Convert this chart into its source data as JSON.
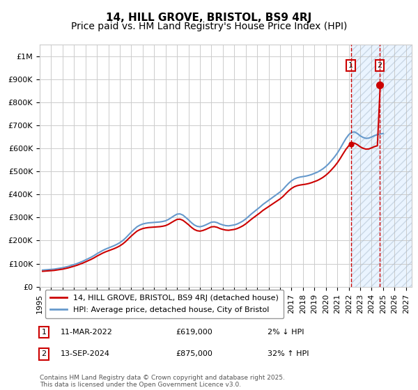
{
  "title": "14, HILL GROVE, BRISTOL, BS9 4RJ",
  "subtitle": "Price paid vs. HM Land Registry's House Price Index (HPI)",
  "ylabel_ticks": [
    "£0",
    "£100K",
    "£200K",
    "£300K",
    "£400K",
    "£500K",
    "£600K",
    "£700K",
    "£800K",
    "£900K",
    "£1M"
  ],
  "ytick_vals": [
    0,
    100000,
    200000,
    300000,
    400000,
    500000,
    600000,
    700000,
    800000,
    900000,
    1000000
  ],
  "ylim": [
    0,
    1050000
  ],
  "xlim_start": 1995.0,
  "xlim_end": 2027.5,
  "xticks": [
    1995,
    1996,
    1997,
    1998,
    1999,
    2000,
    2001,
    2002,
    2003,
    2004,
    2005,
    2006,
    2007,
    2008,
    2009,
    2010,
    2011,
    2012,
    2013,
    2014,
    2015,
    2016,
    2017,
    2018,
    2019,
    2020,
    2021,
    2022,
    2023,
    2024,
    2025,
    2026,
    2027
  ],
  "hpi_x": [
    1995.25,
    1995.5,
    1995.75,
    1996.0,
    1996.25,
    1996.5,
    1996.75,
    1997.0,
    1997.25,
    1997.5,
    1997.75,
    1998.0,
    1998.25,
    1998.5,
    1998.75,
    1999.0,
    1999.25,
    1999.5,
    1999.75,
    2000.0,
    2000.25,
    2000.5,
    2000.75,
    2001.0,
    2001.25,
    2001.5,
    2001.75,
    2002.0,
    2002.25,
    2002.5,
    2002.75,
    2003.0,
    2003.25,
    2003.5,
    2003.75,
    2004.0,
    2004.25,
    2004.5,
    2004.75,
    2005.0,
    2005.25,
    2005.5,
    2005.75,
    2006.0,
    2006.25,
    2006.5,
    2006.75,
    2007.0,
    2007.25,
    2007.5,
    2007.75,
    2008.0,
    2008.25,
    2008.5,
    2008.75,
    2009.0,
    2009.25,
    2009.5,
    2009.75,
    2010.0,
    2010.25,
    2010.5,
    2010.75,
    2011.0,
    2011.25,
    2011.5,
    2011.75,
    2012.0,
    2012.25,
    2012.5,
    2012.75,
    2013.0,
    2013.25,
    2013.5,
    2013.75,
    2014.0,
    2014.25,
    2014.5,
    2014.75,
    2015.0,
    2015.25,
    2015.5,
    2015.75,
    2016.0,
    2016.25,
    2016.5,
    2016.75,
    2017.0,
    2017.25,
    2017.5,
    2017.75,
    2018.0,
    2018.25,
    2018.5,
    2018.75,
    2019.0,
    2019.25,
    2019.5,
    2019.75,
    2020.0,
    2020.25,
    2020.5,
    2020.75,
    2021.0,
    2021.25,
    2021.5,
    2021.75,
    2022.0,
    2022.25,
    2022.5,
    2022.75,
    2023.0,
    2023.25,
    2023.5,
    2023.75,
    2024.0,
    2024.25,
    2024.5,
    2024.75,
    2025.0
  ],
  "hpi_y": [
    72000,
    73000,
    74000,
    75000,
    76000,
    78000,
    80000,
    82000,
    85000,
    88000,
    92000,
    96000,
    100000,
    105000,
    110000,
    116000,
    122000,
    128000,
    135000,
    143000,
    150000,
    157000,
    163000,
    168000,
    173000,
    178000,
    184000,
    191000,
    200000,
    211000,
    224000,
    237000,
    249000,
    260000,
    267000,
    272000,
    275000,
    277000,
    278000,
    279000,
    280000,
    281000,
    283000,
    286000,
    292000,
    300000,
    308000,
    315000,
    316000,
    311000,
    301000,
    290000,
    278000,
    268000,
    262000,
    260000,
    263000,
    268000,
    274000,
    280000,
    281000,
    278000,
    272000,
    268000,
    265000,
    264000,
    266000,
    268000,
    272000,
    278000,
    285000,
    294000,
    305000,
    316000,
    326000,
    336000,
    346000,
    357000,
    366000,
    375000,
    384000,
    393000,
    402000,
    411000,
    422000,
    436000,
    449000,
    460000,
    468000,
    473000,
    476000,
    478000,
    480000,
    483000,
    487000,
    492000,
    497000,
    504000,
    512000,
    522000,
    534000,
    548000,
    563000,
    580000,
    600000,
    622000,
    643000,
    660000,
    670000,
    672000,
    665000,
    655000,
    648000,
    644000,
    645000,
    650000,
    656000,
    660000,
    663000,
    665000
  ],
  "sale1_x": 2022.19,
  "sale1_y": 619000,
  "sale2_x": 2024.71,
  "sale2_y": 875000,
  "vline1_x": 2022.19,
  "vline2_x": 2024.71,
  "shade_start": 2022.19,
  "shade_end": 2027.5,
  "legend_line1": "14, HILL GROVE, BRISTOL, BS9 4RJ (detached house)",
  "legend_line2": "HPI: Average price, detached house, City of Bristol",
  "table_rows": [
    {
      "num": "1",
      "date": "11-MAR-2022",
      "price": "£619,000",
      "hpi": "2% ↓ HPI"
    },
    {
      "num": "2",
      "date": "13-SEP-2024",
      "price": "£875,000",
      "hpi": "32% ↑ HPI"
    }
  ],
  "footer": "Contains HM Land Registry data © Crown copyright and database right 2025.\nThis data is licensed under the Open Government Licence v3.0.",
  "hpi_color": "#6699cc",
  "sale_color": "#cc0000",
  "grid_color": "#cccccc",
  "shade_color": "#ddeeff",
  "title_fontsize": 11,
  "subtitle_fontsize": 10,
  "tick_fontsize": 8
}
